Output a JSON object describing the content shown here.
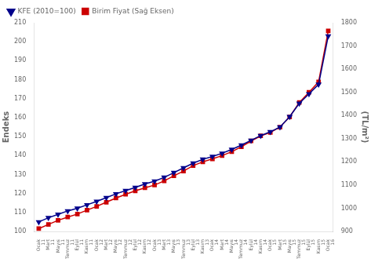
{
  "chart_data": {
    "type": "line",
    "ylabel": "Endeks",
    "y2label": "(TL/m²)",
    "categories": [
      "Ocak\n11",
      "Mart\n11",
      "Mayıs\n11",
      "Temmuz\n11",
      "Eylül\n11",
      "Kasım\n11",
      "Ocak\n12",
      "Mart\n12",
      "Mayıs\n12",
      "Temmuz\n12",
      "Eylül\n12",
      "Kasım\n12",
      "Ocak\n13",
      "Mart\n13",
      "Mayıs\n13",
      "Temmuz\n13",
      "Eylül\n13",
      "Kasım\n13",
      "Ocak\n14",
      "Mart\n14",
      "Mayıs\n14",
      "Temmuz\n14",
      "Eylül\n14",
      "Kasım\n14",
      "Ocak\n15",
      "Mart\n15",
      "Mayıs\n15",
      "Temmuz\n15",
      "Eylül\n15",
      "Kasım\n15",
      "Ocak\n16"
    ],
    "series": [
      {
        "name": "KFE (2010=100)",
        "color": "#00008B",
        "marker": "triangle_down",
        "values": [
          105.0,
          107.2,
          109.0,
          110.8,
          112.2,
          114.0,
          115.8,
          117.8,
          119.8,
          121.5,
          123.2,
          125.0,
          126.5,
          128.5,
          131.0,
          133.5,
          136.0,
          138.0,
          139.5,
          141.2,
          143.2,
          145.5,
          148.0,
          150.5,
          152.5,
          155.0,
          160.5,
          167.5,
          172.5,
          177.5,
          203.0
        ]
      },
      {
        "name": "Birim Fiyat (Sağ Eksen)",
        "color": "#CC0000",
        "marker": "square",
        "axis": "y2",
        "values": [
          912,
          930,
          948,
          962,
          975,
          992,
          1008,
          1026,
          1044,
          1060,
          1075,
          1088,
          1100,
          1118,
          1140,
          1160,
          1184,
          1200,
          1213,
          1227,
          1244,
          1265,
          1290,
          1312,
          1327,
          1350,
          1394,
          1456,
          1500,
          1545,
          1765
        ]
      }
    ],
    "ylim": [
      100,
      210
    ],
    "yticks": [
      100,
      110,
      120,
      130,
      140,
      150,
      160,
      170,
      180,
      190,
      200,
      210
    ],
    "y2lim": [
      900,
      1800
    ],
    "y2ticks": [
      900,
      1000,
      1100,
      1200,
      1300,
      1400,
      1500,
      1600,
      1700,
      1800
    ],
    "grid": false,
    "legend": "upper left"
  }
}
